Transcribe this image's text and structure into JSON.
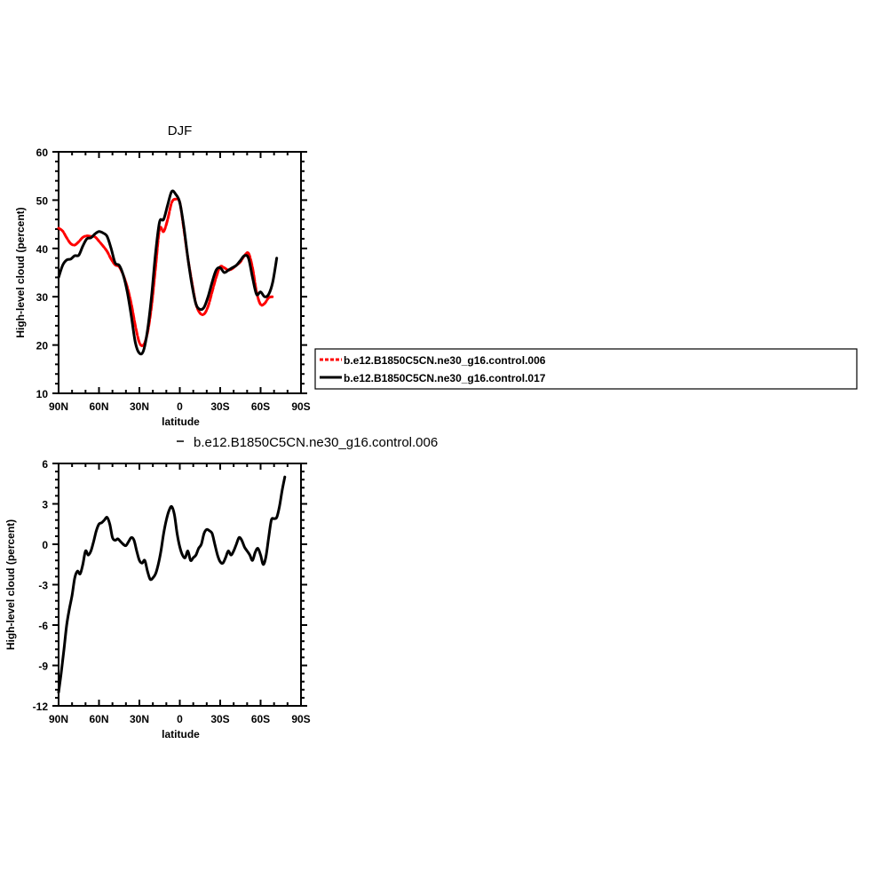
{
  "chart_data": [
    {
      "type": "line",
      "title": "DJF",
      "xlabel": "latitude",
      "ylabel": "High-level cloud (percent)",
      "xlim": [
        90,
        -90
      ],
      "ylim": [
        10,
        60
      ],
      "x_ticks": [
        {
          "value": 90,
          "label": "90N"
        },
        {
          "value": 60,
          "label": "60N"
        },
        {
          "value": 30,
          "label": "30N"
        },
        {
          "value": 0,
          "label": "0"
        },
        {
          "value": -30,
          "label": "30S"
        },
        {
          "value": -60,
          "label": "60S"
        },
        {
          "value": -90,
          "label": "90S"
        }
      ],
      "y_ticks": [
        10,
        20,
        30,
        40,
        50,
        60
      ],
      "legend_position": "right",
      "series": [
        {
          "name": "b.e12.B1850C5CN.ne30_g16.control.006",
          "color": "#ff0000",
          "dash": "dashed",
          "x": [
            90,
            87,
            84,
            81,
            78,
            75,
            72,
            69,
            66,
            63,
            60,
            57,
            54,
            51,
            48,
            45,
            42,
            39,
            36,
            33,
            30,
            27,
            24,
            21,
            18,
            15,
            12,
            9,
            6,
            3,
            0,
            -3,
            -6,
            -9,
            -12,
            -15,
            -18,
            -21,
            -24,
            -27,
            -30,
            -33,
            -36,
            -39,
            -42,
            -45,
            -48,
            -51,
            -54,
            -57,
            -60,
            -63,
            -66,
            -69,
            -72,
            -75,
            -78,
            -81,
            -84,
            -87,
            -90
          ],
          "y": [
            44.2,
            43.6,
            42.2,
            41,
            40.7,
            41.4,
            42.3,
            42.6,
            42.5,
            42.4,
            41.5,
            40.5,
            39.4,
            37.8,
            36.6,
            36.2,
            34.5,
            32,
            28.5,
            24,
            20.5,
            20,
            22.5,
            28,
            36,
            44,
            43.5,
            46,
            49.5,
            50.2,
            49.5,
            44,
            38,
            33,
            28.5,
            26.6,
            26.4,
            28,
            31,
            34,
            36.2,
            36,
            35.5,
            35.8,
            36.5,
            37.2,
            38.5,
            39,
            36,
            31,
            28.4,
            28.6,
            29.8,
            30,
            null,
            null,
            null,
            null,
            null,
            null,
            null
          ]
        },
        {
          "name": "b.e12.B1850C5CN.ne30_g16.control.017",
          "color": "#000000",
          "dash": "solid",
          "x": [
            90,
            87,
            84,
            81,
            78,
            75,
            72,
            69,
            66,
            63,
            60,
            57,
            54,
            51,
            48,
            45,
            42,
            39,
            36,
            33,
            30,
            27,
            24,
            21,
            18,
            15,
            12,
            9,
            6,
            3,
            0,
            -3,
            -6,
            -9,
            -12,
            -15,
            -18,
            -21,
            -24,
            -27,
            -30,
            -33,
            -36,
            -39,
            -42,
            -45,
            -48,
            -51,
            -54,
            -57,
            -60,
            -63,
            -66,
            -69,
            -72,
            -75,
            -78,
            -81,
            -84,
            -87,
            -90
          ],
          "y": [
            34,
            36.5,
            37.6,
            37.8,
            38.5,
            38.6,
            40.5,
            42,
            42.2,
            43,
            43.5,
            43.2,
            42.5,
            40,
            37,
            36.5,
            34.5,
            31,
            26,
            20.5,
            18.3,
            18.8,
            23,
            30,
            39,
            45.5,
            46,
            49,
            51.8,
            51.2,
            49.5,
            44.5,
            38,
            32.5,
            28.5,
            27.4,
            27.8,
            30,
            33,
            35.5,
            36,
            35,
            35.5,
            36,
            36.5,
            37.5,
            38.5,
            38,
            34,
            30.5,
            31,
            30,
            30.5,
            33,
            38,
            null,
            null,
            null,
            null,
            null,
            null
          ]
        }
      ]
    },
    {
      "type": "line",
      "title": "",
      "subtitle_legend": "b.e12.B1850C5CN.ne30_g16.control.006",
      "xlabel": "latitude",
      "ylabel": "High-level cloud (percent)",
      "xlim": [
        90,
        -90
      ],
      "ylim": [
        -12,
        6
      ],
      "x_ticks": [
        {
          "value": 90,
          "label": "90N"
        },
        {
          "value": 60,
          "label": "60N"
        },
        {
          "value": 30,
          "label": "30N"
        },
        {
          "value": 0,
          "label": "0"
        },
        {
          "value": -30,
          "label": "30S"
        },
        {
          "value": -60,
          "label": "60S"
        },
        {
          "value": -90,
          "label": "90S"
        }
      ],
      "y_ticks": [
        -12,
        -9,
        -6,
        -3,
        0,
        3,
        6
      ],
      "series": [
        {
          "color": "#000000",
          "dash": "solid",
          "x": [
            90,
            88,
            86,
            84,
            82,
            80,
            78,
            76,
            74,
            72,
            70,
            68,
            66,
            64,
            62,
            60,
            58,
            56,
            54,
            52,
            50,
            48,
            46,
            44,
            42,
            40,
            38,
            36,
            34,
            32,
            30,
            28,
            26,
            24,
            22,
            20,
            18,
            16,
            14,
            12,
            10,
            8,
            6,
            4,
            2,
            0,
            -2,
            -4,
            -6,
            -8,
            -10,
            -12,
            -14,
            -16,
            -18,
            -20,
            -22,
            -24,
            -26,
            -28,
            -30,
            -32,
            -34,
            -36,
            -38,
            -40,
            -42,
            -44,
            -46,
            -48,
            -50,
            -52,
            -54,
            -56,
            -58,
            -60,
            -62,
            -64,
            -66,
            -68,
            -70,
            -72,
            -74,
            -76,
            -78,
            -80,
            -82,
            -84,
            -86,
            -88,
            -90
          ],
          "y": [
            -11,
            -9.5,
            -7.8,
            -6,
            -4.8,
            -3.8,
            -2.5,
            -2,
            -2.2,
            -1.5,
            -0.5,
            -0.8,
            -0.5,
            0.2,
            1,
            1.5,
            1.6,
            1.8,
            2,
            1.5,
            0.5,
            0.3,
            0.4,
            0.2,
            0,
            -0.1,
            0.2,
            0.5,
            0.3,
            -0.5,
            -1.2,
            -1.4,
            -1.2,
            -2,
            -2.6,
            -2.5,
            -2.2,
            -1.5,
            -0.5,
            0.8,
            1.8,
            2.5,
            2.8,
            2.2,
            0.8,
            -0.2,
            -0.8,
            -1,
            -0.5,
            -1.2,
            -1,
            -0.8,
            -0.3,
            0,
            0.8,
            1.1,
            1,
            0.8,
            0,
            -0.8,
            -1.3,
            -1.4,
            -1,
            -0.5,
            -0.8,
            -0.5,
            0,
            0.5,
            0.3,
            -0.2,
            -0.5,
            -0.8,
            -1.2,
            -0.6,
            -0.3,
            -0.8,
            -1.5,
            -0.9,
            0.5,
            1.8,
            1.9,
            2,
            2.8,
            4,
            5,
            null,
            null,
            null,
            null,
            null,
            null
          ]
        }
      ]
    }
  ]
}
